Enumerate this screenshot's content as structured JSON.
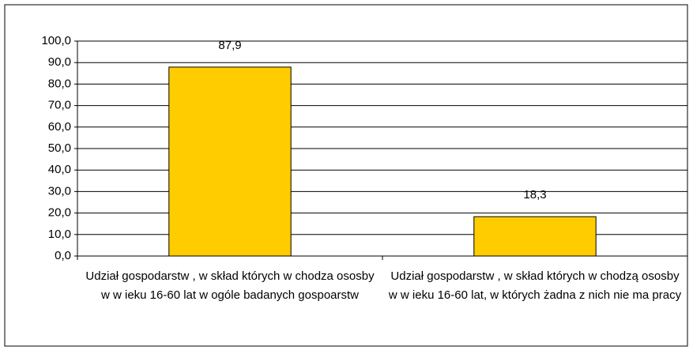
{
  "chart_data": {
    "type": "bar",
    "categories": [
      "Udział gospodarstw , w skład których w chodza ososby w w ieku 16-60 lat w ogóle badanych gospoarstw",
      "Udział gospodarstw , w skład których w chodzą ososby w w ieku 16-60 lat, w których żadna z nich nie ma pracy"
    ],
    "values": [
      87.9,
      18.3
    ],
    "value_labels": [
      "87,9",
      "18,3"
    ],
    "color": "#ffcc00",
    "ylim": [
      0,
      100
    ],
    "yticks": [
      {
        "value": 0,
        "label": "0,0"
      },
      {
        "value": 10,
        "label": "10,0"
      },
      {
        "value": 20,
        "label": "20,0"
      },
      {
        "value": 30,
        "label": "30,0"
      },
      {
        "value": 40,
        "label": "40,0"
      },
      {
        "value": 50,
        "label": "50,0"
      },
      {
        "value": 60,
        "label": "60,0"
      },
      {
        "value": 70,
        "label": "70,0"
      },
      {
        "value": 80,
        "label": "80,0"
      },
      {
        "value": 90,
        "label": "90,0"
      },
      {
        "value": 100,
        "label": "100,0"
      }
    ],
    "grid": true
  }
}
